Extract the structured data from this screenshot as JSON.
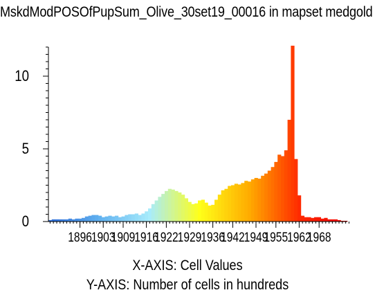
{
  "title": "MskdModPOSOfPupSum_Olive_30set19_00016 in mapset medgold",
  "chart_data": {
    "type": "bar",
    "xlabel": "X-AXIS: Cell Values",
    "ylabel": "Y-AXIS: Number of cells in hundreds",
    "xlim": [
      1887,
      1977
    ],
    "ylim": [
      0,
      12
    ],
    "x_ticks": [
      "1896",
      "1903",
      "1909",
      "1916",
      "1922",
      "1929",
      "1936",
      "1942",
      "1949",
      "1955",
      "1962",
      "1968"
    ],
    "y_ticks": [
      "0",
      "5",
      "10"
    ],
    "grid": false,
    "color_ramp": [
      "#2c6bd6",
      "#62b2f0",
      "#a8ecfb",
      "#ffff19",
      "#ffab00",
      "#ff2a00",
      "#ee0000"
    ],
    "series": [
      {
        "x": [
          1887,
          1888,
          1889,
          1890,
          1891,
          1892,
          1893,
          1894,
          1895,
          1896,
          1897,
          1898,
          1899,
          1900,
          1901,
          1902,
          1903,
          1904,
          1905,
          1906,
          1907,
          1908,
          1909,
          1910,
          1911,
          1912,
          1913,
          1914,
          1915,
          1916,
          1917,
          1918,
          1919,
          1920,
          1921,
          1922,
          1923,
          1924,
          1925,
          1926,
          1927,
          1928,
          1929,
          1930,
          1931,
          1932,
          1933,
          1934,
          1935,
          1936,
          1937,
          1938,
          1939,
          1940,
          1941,
          1942,
          1943,
          1944,
          1945,
          1946,
          1947,
          1948,
          1949,
          1950,
          1951,
          1952,
          1953,
          1954,
          1955,
          1956,
          1957,
          1958,
          1959,
          1960,
          1961,
          1962,
          1963,
          1964,
          1965,
          1966,
          1967,
          1968,
          1969,
          1970,
          1971,
          1972,
          1973,
          1974,
          1975,
          1976
        ],
        "values": [
          0.1,
          0.15,
          0.15,
          0.15,
          0.15,
          0.15,
          0.2,
          0.15,
          0.2,
          0.2,
          0.25,
          0.35,
          0.4,
          0.45,
          0.45,
          0.4,
          0.3,
          0.35,
          0.4,
          0.35,
          0.4,
          0.3,
          0.35,
          0.45,
          0.5,
          0.5,
          0.55,
          0.45,
          0.55,
          0.7,
          0.9,
          1.2,
          1.45,
          1.7,
          1.9,
          2.1,
          2.25,
          2.2,
          2.1,
          2.0,
          1.85,
          1.6,
          1.35,
          1.2,
          1.25,
          1.45,
          1.5,
          1.3,
          1.1,
          1.15,
          1.5,
          1.85,
          2.15,
          2.25,
          2.45,
          2.5,
          2.6,
          2.55,
          2.65,
          2.8,
          2.75,
          2.9,
          3.0,
          2.95,
          3.15,
          3.3,
          3.5,
          3.75,
          4.1,
          4.6,
          4.5,
          4.9,
          7.0,
          12.2,
          4.3,
          1.8,
          0.4,
          0.3,
          0.3,
          0.25,
          0.3,
          0.3,
          0.2,
          0.25,
          0.15,
          0.15,
          0.15,
          0.1,
          0.05,
          0.05
        ]
      }
    ]
  }
}
